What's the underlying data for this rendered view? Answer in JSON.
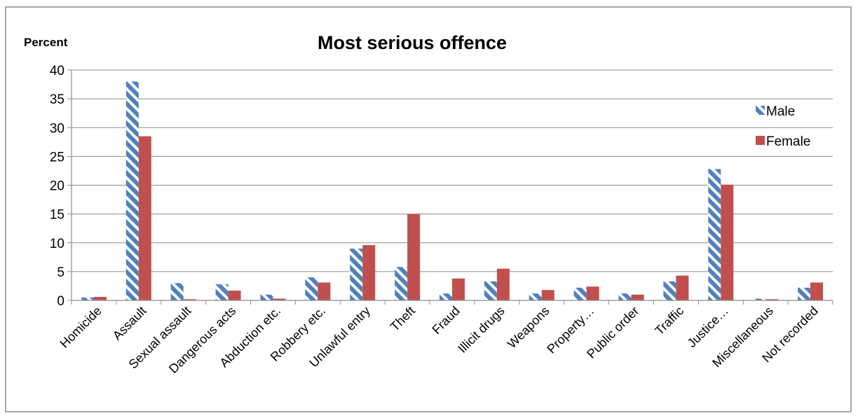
{
  "chart_data": {
    "type": "bar",
    "title": "Most serious offence",
    "ylabel": "Percent",
    "xlabel": "",
    "ylim": [
      0,
      40
    ],
    "yticks": [
      0,
      5,
      10,
      15,
      20,
      25,
      30,
      35,
      40
    ],
    "grid": true,
    "legend_position": "top-right",
    "categories": [
      "Homicide",
      "Assault",
      "Sexual assault",
      "Dangerous acts",
      "Abduction etc.",
      "Robbery etc.",
      "Unlawful entry",
      "Theft",
      "Fraud",
      "Illicit drugs",
      "Weapons",
      "Property…",
      "Public order",
      "Traffic",
      "Justice…",
      "Miscellaneous",
      "Not recorded"
    ],
    "series": [
      {
        "name": "Male",
        "color": "#4F81BD",
        "pattern": "diagonal-stripes",
        "values": [
          0.5,
          38,
          3,
          2.8,
          1.0,
          4,
          9,
          5.8,
          1.2,
          3.3,
          1.2,
          2.2,
          1.2,
          3.3,
          22.8,
          0.3,
          2.2
        ]
      },
      {
        "name": "Female",
        "color": "#C0504D",
        "pattern": "solid",
        "values": [
          0.6,
          28.5,
          0.2,
          1.7,
          0.3,
          3.1,
          9.6,
          15,
          3.8,
          5.5,
          1.8,
          2.4,
          1.0,
          4.3,
          20.1,
          0.2,
          3.1
        ]
      }
    ]
  }
}
